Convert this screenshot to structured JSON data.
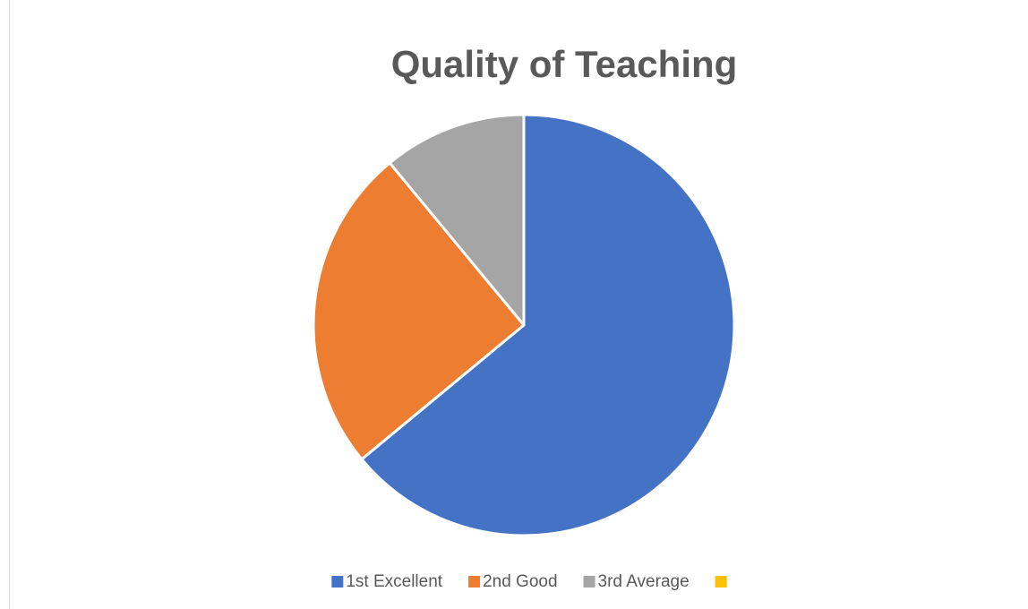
{
  "chart_data": {
    "type": "pie",
    "title": "Quality of Teaching",
    "categories": [
      "1st Excellent",
      "2nd Good",
      "3rd Average",
      null
    ],
    "values": [
      64,
      25,
      11,
      0
    ],
    "colors": [
      "#4472c4",
      "#ed7d31",
      "#a5a5a5",
      "#ffc000"
    ],
    "legend": "bottom"
  }
}
